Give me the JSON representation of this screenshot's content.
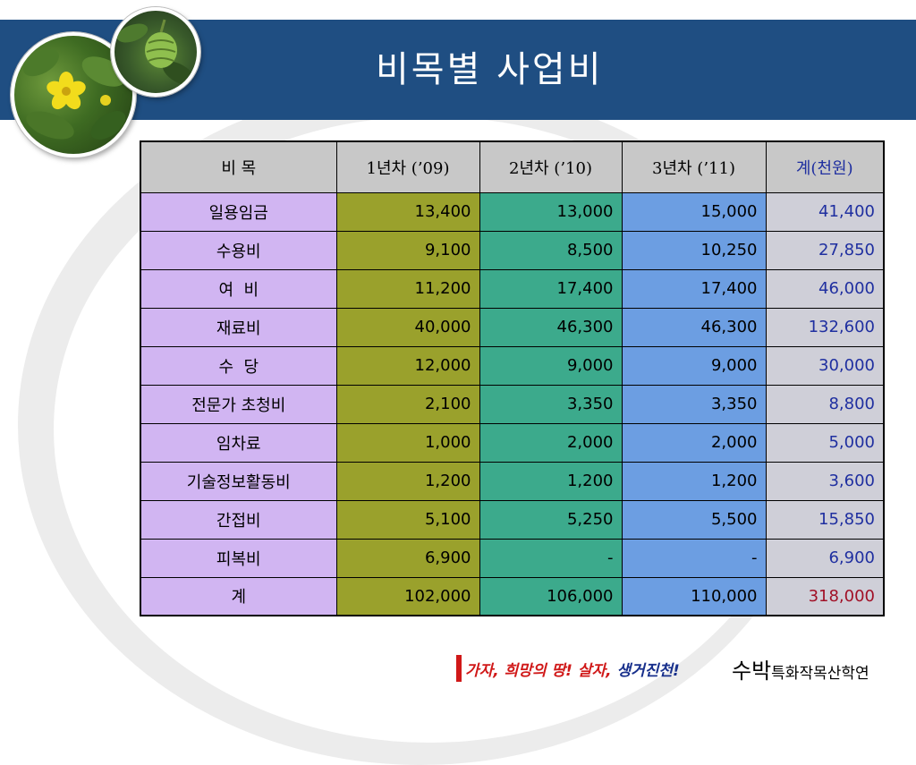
{
  "title": "비목별 사업비",
  "table": {
    "headers": [
      "비    목",
      "1년차 (’09)",
      "2년차 (’10)",
      "3년차 (’11)",
      "계(천원)"
    ],
    "rows": [
      {
        "item": "일용임금",
        "y1": "13,400",
        "y2": "13,000",
        "y3": "15,000",
        "total": "41,400"
      },
      {
        "item": "수용비",
        "y1": "9,100",
        "y2": "8,500",
        "y3": "10,250",
        "total": "27,850"
      },
      {
        "item": "여  비",
        "y1": "11,200",
        "y2": "17,400",
        "y3": "17,400",
        "total": "46,000"
      },
      {
        "item": "재료비",
        "y1": "40,000",
        "y2": "46,300",
        "y3": "46,300",
        "total": "132,600"
      },
      {
        "item": "수  당",
        "y1": "12,000",
        "y2": "9,000",
        "y3": "9,000",
        "total": "30,000"
      },
      {
        "item": "전문가 초청비",
        "y1": "2,100",
        "y2": "3,350",
        "y3": "3,350",
        "total": "8,800"
      },
      {
        "item": "임차료",
        "y1": "1,000",
        "y2": "2,000",
        "y3": "2,000",
        "total": "5,000"
      },
      {
        "item": "기술정보활동비",
        "y1": "1,200",
        "y2": "1,200",
        "y3": "1,200",
        "total": "3,600"
      },
      {
        "item": "간접비",
        "y1": "5,100",
        "y2": "5,250",
        "y3": "5,500",
        "total": "15,850"
      },
      {
        "item": "피복비",
        "y1": "6,900",
        "y2": "-",
        "y3": "-",
        "total": "6,900"
      },
      {
        "item": "계",
        "y1": "102,000",
        "y2": "106,000",
        "y3": "110,000",
        "total": "318,000"
      }
    ]
  },
  "footer": {
    "slogan_1": "가자,",
    "slogan_2": "희망의 땅!",
    "slogan_3": "살자,",
    "slogan_4": "생거진천!",
    "brand_big": "수박",
    "brand_small": "특화작목산학연"
  },
  "colors": {
    "header_band": "#1f4e82",
    "item_col": "#d1b5f2",
    "year1_col": "#9aa12c",
    "year2_col": "#3caa8c",
    "year3_col": "#6c9ee2",
    "total_col": "#cfcfd8",
    "total_text": "#1f2fa0",
    "grand_total_text": "#a11026"
  },
  "images": [
    "watermelon-flower-photo",
    "watermelon-fruit-photo"
  ]
}
